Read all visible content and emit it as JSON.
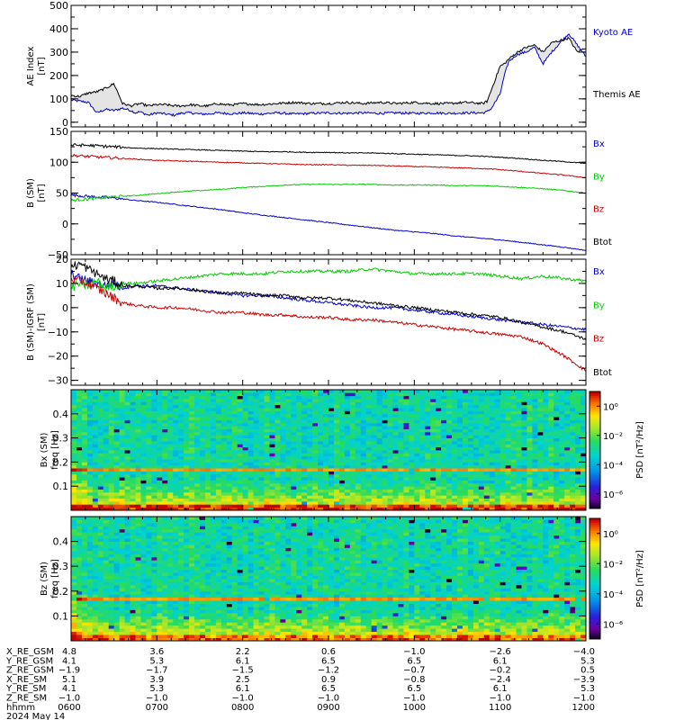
{
  "chart_data": [
    {
      "type": "line",
      "panel": "ae",
      "ylabel": [
        "AE Index",
        "[nT]"
      ],
      "ylim": [
        -20,
        500
      ],
      "yticks": [
        0,
        100,
        200,
        300,
        400,
        500
      ],
      "legend_placement": "right",
      "x_hours": [
        6.0,
        6.1,
        6.2,
        6.3,
        6.4,
        6.5,
        6.6,
        6.7,
        6.75,
        6.8,
        6.9,
        7.0,
        7.1,
        7.2,
        7.3,
        7.4,
        7.5,
        7.6,
        7.7,
        7.8,
        7.9,
        8.0,
        8.2,
        8.4,
        8.6,
        8.8,
        9.0,
        9.2,
        9.4,
        9.6,
        9.8,
        10.0,
        10.2,
        10.4,
        10.6,
        10.8,
        10.85,
        10.9,
        11.0,
        11.05,
        11.1,
        11.2,
        11.3,
        11.4,
        11.5,
        11.6,
        11.7,
        11.8,
        11.9,
        12.0
      ],
      "series": [
        {
          "name": "Kyoto AE",
          "color": "#0000cc",
          "values": [
            95,
            90,
            85,
            40,
            55,
            50,
            60,
            50,
            40,
            45,
            30,
            40,
            35,
            30,
            40,
            40,
            35,
            35,
            40,
            38,
            36,
            40,
            35,
            40,
            35,
            38,
            40,
            38,
            40,
            38,
            40,
            38,
            40,
            38,
            40,
            40,
            45,
            60,
            120,
            200,
            260,
            290,
            300,
            320,
            250,
            300,
            340,
            380,
            330,
            280
          ]
        },
        {
          "name": "Themis AE",
          "color": "#000000",
          "values": [
            115,
            110,
            125,
            130,
            145,
            165,
            80,
            70,
            75,
            80,
            70,
            75,
            75,
            70,
            70,
            75,
            70,
            70,
            80,
            75,
            75,
            80,
            75,
            80,
            85,
            80,
            80,
            85,
            80,
            85,
            80,
            85,
            80,
            80,
            85,
            80,
            90,
            140,
            240,
            250,
            270,
            300,
            320,
            330,
            300,
            340,
            350,
            360,
            300,
            320
          ]
        }
      ]
    },
    {
      "type": "line",
      "panel": "b_sm",
      "ylabel": [
        "B (SM)",
        "[nT]"
      ],
      "ylim": [
        -50,
        150
      ],
      "yticks": [
        -50,
        0,
        50,
        100,
        150
      ],
      "legend_placement": "right",
      "x_hours": [
        6.0,
        6.25,
        6.5,
        6.75,
        7.0,
        7.25,
        7.5,
        7.75,
        8.0,
        8.25,
        8.5,
        8.75,
        9.0,
        9.25,
        9.5,
        9.75,
        10.0,
        10.25,
        10.5,
        10.75,
        11.0,
        11.25,
        11.5,
        11.75,
        12.0
      ],
      "series": [
        {
          "name": "Bx",
          "color": "#0000cc",
          "values": [
            47,
            44,
            42,
            38,
            35,
            31,
            27,
            23,
            18,
            14,
            10,
            6,
            2,
            -2,
            -6,
            -10,
            -13,
            -16,
            -20,
            -23,
            -26,
            -30,
            -34,
            -38,
            -43
          ]
        },
        {
          "name": "By",
          "color": "#00cc00",
          "values": [
            38,
            41,
            44,
            46,
            49,
            52,
            54,
            56,
            59,
            61,
            63,
            64,
            64,
            64,
            64,
            63,
            63,
            63,
            62,
            62,
            61,
            59,
            57,
            54,
            50
          ]
        },
        {
          "name": "Bz",
          "color": "#cc0000",
          "values": [
            111,
            109,
            107,
            105,
            103,
            102,
            101,
            100,
            99,
            98,
            97,
            96,
            96,
            95,
            95,
            94,
            93,
            92,
            91,
            90,
            88,
            85,
            82,
            79,
            75
          ]
        },
        {
          "name": "Btot",
          "color": "#000000",
          "values": [
            128,
            127,
            125,
            123,
            122,
            121,
            120,
            119,
            118,
            117,
            117,
            116,
            116,
            115,
            115,
            114,
            113,
            112,
            111,
            110,
            108,
            106,
            103,
            101,
            98
          ]
        }
      ]
    },
    {
      "type": "line",
      "panel": "b_minus_igrf",
      "ylabel": [
        "B (SM)-IGRF (SM)",
        "[nT]"
      ],
      "ylim": [
        -32,
        20
      ],
      "yticks": [
        -30,
        -20,
        -10,
        0,
        10,
        20
      ],
      "legend_placement": "right",
      "x_hours": [
        6.0,
        6.1,
        6.2,
        6.3,
        6.4,
        6.5,
        6.6,
        6.75,
        7.0,
        7.25,
        7.5,
        7.75,
        8.0,
        8.25,
        8.5,
        8.75,
        9.0,
        9.25,
        9.5,
        9.75,
        10.0,
        10.25,
        10.5,
        10.75,
        11.0,
        11.25,
        11.5,
        11.75,
        12.0
      ],
      "series": [
        {
          "name": "Bx",
          "color": "#0000cc",
          "values": [
            14,
            12,
            11,
            10,
            9,
            10,
            8,
            9,
            9,
            8,
            7,
            6,
            5,
            5,
            4,
            3,
            2,
            1,
            0,
            0,
            -1,
            -2,
            -3,
            -4,
            -5,
            -6,
            -7,
            -8,
            -9
          ]
        },
        {
          "name": "By",
          "color": "#00cc00",
          "values": [
            8,
            10,
            9,
            11,
            8,
            9,
            10,
            10,
            11,
            12,
            13,
            14,
            14,
            14,
            15,
            15,
            15,
            15,
            16,
            15,
            14,
            14,
            14,
            14,
            13,
            12,
            13,
            12,
            11
          ]
        },
        {
          "name": "Bz",
          "color": "#cc0000",
          "values": [
            12,
            11,
            10,
            8,
            6,
            4,
            2,
            1,
            0,
            0,
            -1,
            -2,
            -2,
            -3,
            -3,
            -4,
            -4,
            -5,
            -5,
            -6,
            -7,
            -8,
            -9,
            -10,
            -11,
            -12,
            -15,
            -20,
            -26
          ]
        },
        {
          "name": "Btot",
          "color": "#000000",
          "values": [
            17,
            18,
            16,
            14,
            12,
            11,
            9,
            9,
            8,
            8,
            7,
            6,
            6,
            5,
            5,
            4,
            4,
            3,
            2,
            1,
            0,
            -1,
            -2,
            -3,
            -4,
            -6,
            -8,
            -10,
            -13
          ]
        }
      ]
    },
    {
      "type": "heatmap",
      "panel": "spec_bx",
      "ylabel": [
        "Bx (SM)",
        "freq [Hz]"
      ],
      "ylim": [
        0,
        0.5
      ],
      "yticks": [
        0.1,
        0.2,
        0.3,
        0.4
      ],
      "colorbar_label": "PSD [nT²/Hz]",
      "colorbar_ticks": [
        "10⁰",
        "10⁻²",
        "10⁻⁴",
        "10⁻⁶"
      ],
      "colorbar_log_range": [
        -7,
        1
      ],
      "description_values": {
        "background_level": -3,
        "band_freq_hz": 0.17,
        "band_level": 0,
        "low_freq_level": 0.5
      }
    },
    {
      "type": "heatmap",
      "panel": "spec_bz",
      "ylabel": [
        "Bz (SM)",
        "freq [Hz]"
      ],
      "ylim": [
        0,
        0.5
      ],
      "yticks": [
        0.1,
        0.2,
        0.3,
        0.4
      ],
      "colorbar_label": "PSD [nT²/Hz]",
      "colorbar_ticks": [
        "10⁰",
        "10⁻²",
        "10⁻⁴",
        "10⁻⁶"
      ],
      "colorbar_log_range": [
        -7,
        1
      ],
      "description_values": {
        "background_level": -3,
        "band_freq_hz": 0.17,
        "band_level": 0,
        "low_freq_level": 0.0
      }
    }
  ],
  "x_axis": {
    "range_hours": [
      6.0,
      12.0
    ],
    "rows": [
      {
        "label": "X_RE_GSM",
        "values": [
          "4.8",
          "3.6",
          "2.2",
          "0.6",
          "−1.0",
          "−2.6",
          "−4.0"
        ]
      },
      {
        "label": "Y_RE_GSM",
        "values": [
          "4.1",
          "5.3",
          "6.1",
          "6.5",
          "6.5",
          "6.1",
          "5.3"
        ]
      },
      {
        "label": "Z_RE_GSM",
        "values": [
          "−1.9",
          "−1.7",
          "−1.5",
          "−1.2",
          "−0.7",
          "−0.2",
          "0.5"
        ]
      },
      {
        "label": "X_RE_SM",
        "values": [
          "5.1",
          "3.9",
          "2.5",
          "0.9",
          "−0.8",
          "−2.4",
          "−3.9"
        ]
      },
      {
        "label": "Y_RE_SM",
        "values": [
          "4.1",
          "5.3",
          "6.1",
          "6.5",
          "6.5",
          "6.1",
          "5.3"
        ]
      },
      {
        "label": "Z_RE_SM",
        "values": [
          "−1.0",
          "−1.0",
          "−1.0",
          "−1.0",
          "−1.0",
          "−1.0",
          "−1.0"
        ]
      },
      {
        "label": "hhmm",
        "values": [
          "0600",
          "0700",
          "0800",
          "0900",
          "1000",
          "1100",
          "1200"
        ]
      }
    ],
    "date": "2024 May 14"
  }
}
